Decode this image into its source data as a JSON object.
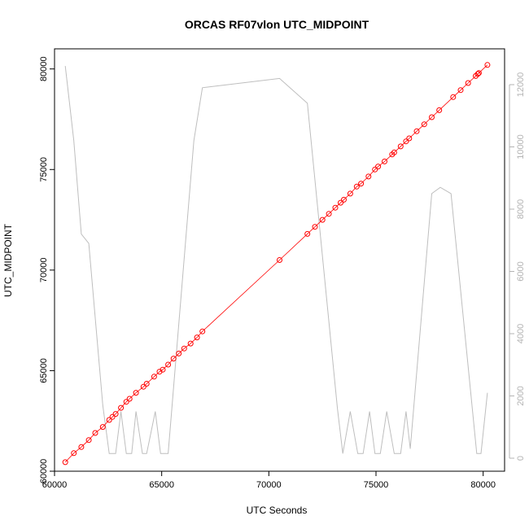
{
  "chart_data": {
    "type": "line",
    "title": "ORCAS RF07vlon UTC_MIDPOINT",
    "xlabel": "UTC Seconds",
    "ylabel": "UTC_MIDPOINT",
    "grid": false,
    "xlim": [
      60000,
      81000
    ],
    "ylim": [
      60000,
      81000
    ],
    "y2lim": [
      0,
      12800
    ],
    "xticks": [
      60000,
      65000,
      70000,
      75000,
      80000
    ],
    "yticks": [
      60000,
      65000,
      70000,
      75000,
      80000
    ],
    "y2ticks": [
      0,
      2000,
      4000,
      6000,
      8000,
      10000,
      12000
    ],
    "colors": {
      "midpoint": "#ff0000",
      "secondary": "#bebebe",
      "right_axis": "#b3b3b3"
    },
    "series": [
      {
        "axis": "left",
        "style": "points-and-line",
        "x": [
          60500,
          60900,
          61250,
          61600,
          61900,
          62250,
          62550,
          62700,
          62850,
          63100,
          63350,
          63500,
          63800,
          64150,
          64300,
          64650,
          64900,
          65050,
          65300,
          65550,
          65800,
          66050,
          66350,
          66650,
          66900,
          70500,
          71800,
          72150,
          72500,
          72800,
          73100,
          73350,
          73500,
          73800,
          74100,
          74300,
          74650,
          74950,
          75100,
          75400,
          75750,
          75850,
          76150,
          76400,
          76550,
          76900,
          77250,
          77600,
          77950,
          78600,
          78950,
          79300,
          79650,
          79750,
          79800,
          80200
        ],
        "y": [
          60450,
          60900,
          61200,
          61550,
          61900,
          62200,
          62550,
          62700,
          62850,
          63150,
          63450,
          63600,
          63900,
          64200,
          64350,
          64700,
          64950,
          65050,
          65300,
          65600,
          65850,
          66100,
          66350,
          66650,
          66950,
          70500,
          71800,
          72150,
          72500,
          72800,
          73100,
          73350,
          73500,
          73800,
          74150,
          74300,
          74650,
          75000,
          75150,
          75400,
          75750,
          75850,
          76150,
          76400,
          76550,
          76900,
          77250,
          77600,
          77950,
          78600,
          78950,
          79300,
          79650,
          79750,
          79800,
          80200
        ]
      },
      {
        "axis": "right",
        "style": "line",
        "x": [
          60500,
          60900,
          61250,
          61600,
          62250,
          62550,
          62850,
          63100,
          63350,
          63600,
          63800,
          64100,
          64300,
          64700,
          64950,
          65300,
          66500,
          66900,
          70500,
          71800,
          73200,
          73450,
          73800,
          74150,
          74400,
          74700,
          74950,
          75200,
          75500,
          75850,
          76150,
          76400,
          76600,
          77600,
          78000,
          78500,
          79700,
          79900,
          80200
        ],
        "y": [
          12600,
          10200,
          7200,
          6900,
          1700,
          150,
          150,
          1500,
          150,
          150,
          1500,
          150,
          150,
          1500,
          150,
          150,
          10200,
          11900,
          12200,
          11400,
          1600,
          150,
          1500,
          150,
          150,
          1500,
          150,
          150,
          1500,
          150,
          150,
          1500,
          300,
          8500,
          8700,
          8500,
          150,
          150,
          2100
        ]
      }
    ]
  }
}
